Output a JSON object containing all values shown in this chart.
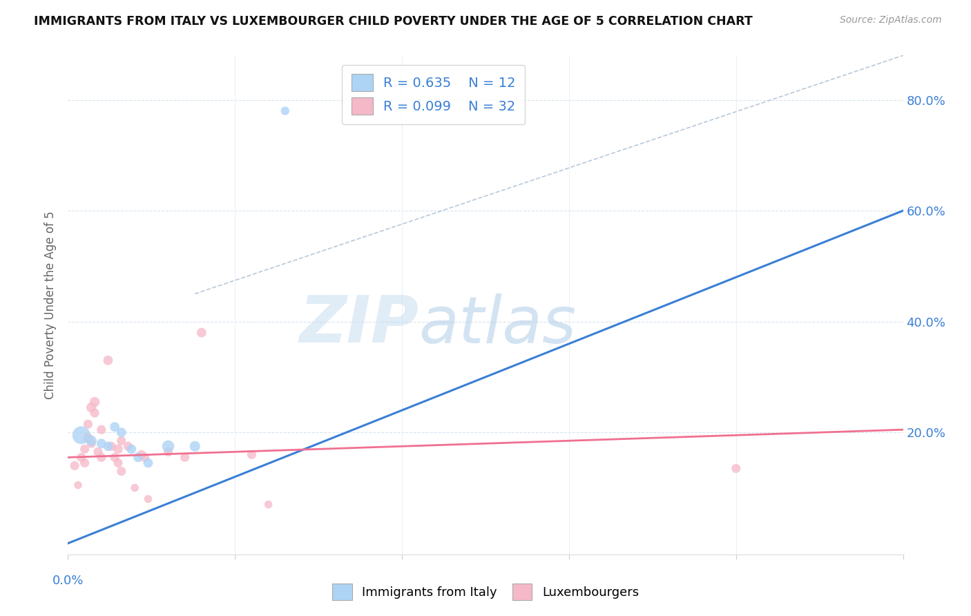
{
  "title": "IMMIGRANTS FROM ITALY VS LUXEMBOURGER CHILD POVERTY UNDER THE AGE OF 5 CORRELATION CHART",
  "source": "Source: ZipAtlas.com",
  "ylabel": "Child Poverty Under the Age of 5",
  "y_ticks": [
    0.0,
    0.2,
    0.4,
    0.6,
    0.8
  ],
  "y_tick_labels": [
    "",
    "20.0%",
    "40.0%",
    "60.0%",
    "80.0%"
  ],
  "xlim": [
    0.0,
    0.25
  ],
  "ylim": [
    -0.02,
    0.88
  ],
  "legend_r1": "R = 0.635",
  "legend_n1": "N = 12",
  "legend_r2": "R = 0.099",
  "legend_n2": "N = 32",
  "color_blue": "#aed4f5",
  "color_pink": "#f5b8c8",
  "line_blue": "#3a7fd5",
  "line_pink": "#f07090",
  "line_dashed_color": "#b8c8d8",
  "watermark_zip": "ZIP",
  "watermark_atlas": "atlas",
  "italy_points": [
    [
      0.004,
      0.195
    ],
    [
      0.007,
      0.185
    ],
    [
      0.01,
      0.18
    ],
    [
      0.012,
      0.175
    ],
    [
      0.014,
      0.21
    ],
    [
      0.016,
      0.2
    ],
    [
      0.019,
      0.17
    ],
    [
      0.021,
      0.155
    ],
    [
      0.024,
      0.145
    ],
    [
      0.03,
      0.175
    ],
    [
      0.038,
      0.175
    ],
    [
      0.065,
      0.78
    ]
  ],
  "italy_sizes": [
    350,
    120,
    100,
    100,
    100,
    100,
    100,
    100,
    100,
    160,
    120,
    80
  ],
  "lux_points": [
    [
      0.002,
      0.14
    ],
    [
      0.003,
      0.105
    ],
    [
      0.004,
      0.155
    ],
    [
      0.005,
      0.17
    ],
    [
      0.005,
      0.145
    ],
    [
      0.006,
      0.19
    ],
    [
      0.006,
      0.215
    ],
    [
      0.007,
      0.245
    ],
    [
      0.007,
      0.18
    ],
    [
      0.008,
      0.255
    ],
    [
      0.008,
      0.235
    ],
    [
      0.009,
      0.165
    ],
    [
      0.01,
      0.205
    ],
    [
      0.01,
      0.155
    ],
    [
      0.012,
      0.33
    ],
    [
      0.013,
      0.175
    ],
    [
      0.014,
      0.155
    ],
    [
      0.015,
      0.17
    ],
    [
      0.015,
      0.145
    ],
    [
      0.016,
      0.185
    ],
    [
      0.016,
      0.13
    ],
    [
      0.018,
      0.175
    ],
    [
      0.02,
      0.1
    ],
    [
      0.022,
      0.16
    ],
    [
      0.023,
      0.155
    ],
    [
      0.024,
      0.08
    ],
    [
      0.03,
      0.165
    ],
    [
      0.035,
      0.155
    ],
    [
      0.04,
      0.38
    ],
    [
      0.055,
      0.16
    ],
    [
      0.06,
      0.07
    ],
    [
      0.2,
      0.135
    ]
  ],
  "lux_sizes": [
    90,
    70,
    90,
    90,
    90,
    110,
    90,
    110,
    90,
    110,
    90,
    90,
    90,
    90,
    100,
    90,
    90,
    100,
    90,
    90,
    90,
    90,
    70,
    90,
    90,
    70,
    90,
    90,
    100,
    90,
    70,
    90
  ],
  "blue_line": [
    [
      0.0,
      0.0
    ],
    [
      0.25,
      0.6
    ]
  ],
  "pink_line": [
    [
      0.0,
      0.155
    ],
    [
      0.25,
      0.205
    ]
  ],
  "dash_line": [
    [
      0.038,
      0.45
    ],
    [
      0.25,
      0.88
    ]
  ]
}
